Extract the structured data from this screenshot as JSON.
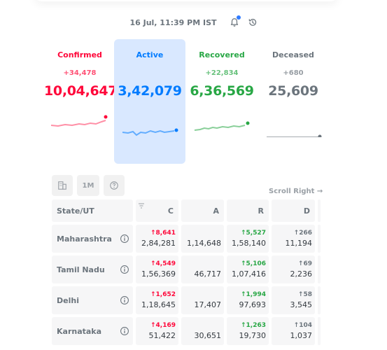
{
  "header": {
    "timestamp": "16 Jul, 11:39 PM IST",
    "icons": [
      "bell-icon",
      "history-icon"
    ],
    "notification_dot_color": "#307bff"
  },
  "level": [
    {
      "key": "confirmed",
      "title": "Confirmed",
      "delta": "+34,478",
      "total": "10,04,647",
      "color": "#ff073a",
      "active": false
    },
    {
      "key": "active",
      "title": "Active",
      "delta": "",
      "total": "3,42,079",
      "color": "#007bff",
      "active": true
    },
    {
      "key": "recovered",
      "title": "Recovered",
      "delta": "+22,834",
      "total": "6,36,569",
      "color": "#28a745",
      "active": false
    },
    {
      "key": "deceased",
      "title": "Deceased",
      "delta": "+680",
      "total": "25,609",
      "color": "#6c757d",
      "active": false
    }
  ],
  "table_actions": {
    "district_icon": "building-icon",
    "range_label": "1M",
    "help_icon": "help-icon",
    "scroll_hint": "Scroll Right →"
  },
  "table": {
    "headers": {
      "state": "State/UT",
      "c": "C",
      "a": "A",
      "r": "R",
      "d": "D"
    },
    "rows": [
      {
        "state": "Maharashtra",
        "c_delta": "↑8,641",
        "c": "2,84,281",
        "a": "1,14,648",
        "r_delta": "↑5,527",
        "r": "1,58,140",
        "d_delta": "↑266",
        "d": "11,194"
      },
      {
        "state": "Tamil Nadu",
        "c_delta": "↑4,549",
        "c": "1,56,369",
        "a": "46,717",
        "r_delta": "↑5,106",
        "r": "1,07,416",
        "d_delta": "↑69",
        "d": "2,236"
      },
      {
        "state": "Delhi",
        "c_delta": "↑1,652",
        "c": "1,18,645",
        "a": "17,407",
        "r_delta": "↑1,994",
        "r": "97,693",
        "d_delta": "↑58",
        "d": "3,545"
      },
      {
        "state": "Karnataka",
        "c_delta": "↑4,169",
        "c": "51,422",
        "a": "30,651",
        "r_delta": "↑1,263",
        "r": "19,730",
        "d_delta": "↑104",
        "d": "1,037"
      }
    ]
  }
}
